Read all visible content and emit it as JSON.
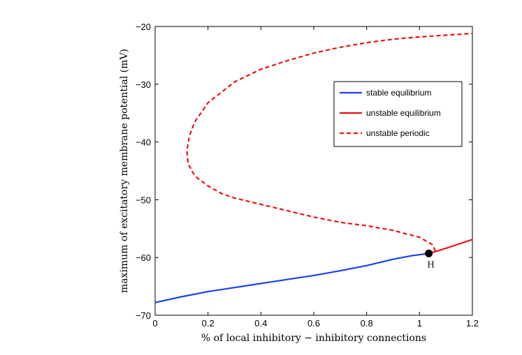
{
  "chart_data": {
    "type": "line",
    "xlabel": "% of local inhibitory − inhibitory connections",
    "ylabel": "maximum of excitatory membrane potential (mV)",
    "xlim": [
      0,
      1.2
    ],
    "ylim": [
      -70,
      -20
    ],
    "x_ticks": [
      "0",
      "0.2",
      "0.4",
      "0.6",
      "0.8",
      "1",
      "1.2"
    ],
    "y_ticks": [
      "−70",
      "−60",
      "−50",
      "−40",
      "−30",
      "−20"
    ],
    "grid": false,
    "legend_position": "top-right",
    "series": [
      {
        "name": "stable equilibrium",
        "color": "#1f3ff0",
        "style": "solid",
        "x": [
          0,
          0.1,
          0.2,
          0.3,
          0.4,
          0.5,
          0.6,
          0.7,
          0.8,
          0.9,
          0.97,
          1.035
        ],
        "y": [
          -67.8,
          -66.8,
          -65.9,
          -65.2,
          -64.5,
          -63.8,
          -63.1,
          -62.3,
          -61.4,
          -60.3,
          -59.7,
          -59.3
        ]
      },
      {
        "name": "unstable equilibrium",
        "color": "#ee1111",
        "style": "solid",
        "x": [
          1.035,
          1.08,
          1.12,
          1.16,
          1.2
        ],
        "y": [
          -59.3,
          -58.7,
          -58.1,
          -57.5,
          -56.9
        ]
      },
      {
        "name": "unstable periodic",
        "color": "#ee1111",
        "style": "dashed",
        "x": [
          1.035,
          1.06,
          1.05,
          1.0,
          0.9,
          0.8,
          0.7,
          0.6,
          0.5,
          0.4,
          0.3,
          0.25,
          0.2,
          0.15,
          0.125,
          0.12,
          0.13,
          0.15,
          0.2,
          0.3,
          0.4,
          0.5,
          0.6,
          0.7,
          0.8,
          0.9,
          1.0,
          1.1,
          1.2
        ],
        "y": [
          -59.3,
          -58.9,
          -57.8,
          -56.5,
          -55.3,
          -54.5,
          -53.9,
          -53.0,
          -51.9,
          -50.8,
          -49.7,
          -48.9,
          -47.6,
          -45.9,
          -43.8,
          -41.5,
          -38.9,
          -36.5,
          -33.2,
          -29.6,
          -27.4,
          -25.9,
          -24.6,
          -23.6,
          -22.8,
          -22.2,
          -21.8,
          -21.5,
          -21.2
        ]
      }
    ],
    "annotations": [
      {
        "label": "H",
        "x": 1.035,
        "y": -59.3
      }
    ]
  }
}
